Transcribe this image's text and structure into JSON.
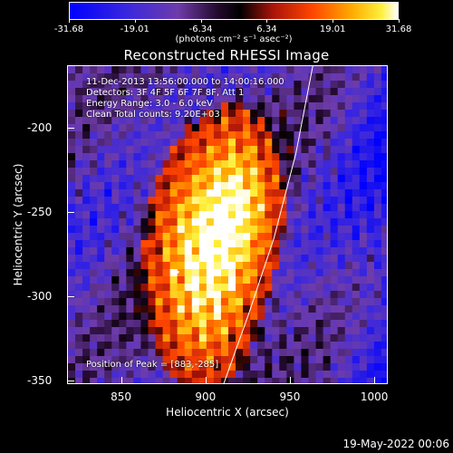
{
  "chart_data": {
    "type": "heatmap",
    "title": "Reconstructed RHESSI Image",
    "xlabel": "Heliocentric X (arcsec)",
    "ylabel": "Heliocentric Y (arcsec)",
    "xlim": [
      818,
      1008
    ],
    "ylim": [
      -352,
      -163
    ],
    "xticks": [
      850,
      900,
      950,
      1000
    ],
    "yticks": [
      -200,
      -250,
      -300,
      -350
    ],
    "colorbar": {
      "range": [
        -31.68,
        31.68
      ],
      "ticks": [
        "-31.68",
        "-19.01",
        "-6.34",
        "6.34",
        "19.01",
        "31.68"
      ],
      "units": "(photons cm⁻² s⁻¹ asec⁻²)"
    },
    "annotations": {
      "line1": "11-Dec-2013 13:56:00.000 to 14:00:16.000",
      "line2": "Detectors: 3F 4F 5F 6F 7F 8F, Att 1",
      "line3": "Energy Range: 3.0 - 6.0 keV",
      "line4": "Clean     Total counts: 9.20E+03",
      "peak": "Position of Peak = [883,-285]"
    },
    "peak": [
      883,
      -285
    ],
    "limb_points": [
      [
        910,
        -352
      ],
      [
        925,
        -310
      ],
      [
        940,
        -265
      ],
      [
        953,
        -215
      ],
      [
        963,
        -163
      ]
    ]
  },
  "footer": {
    "date": "19-May-2022 00:06"
  }
}
